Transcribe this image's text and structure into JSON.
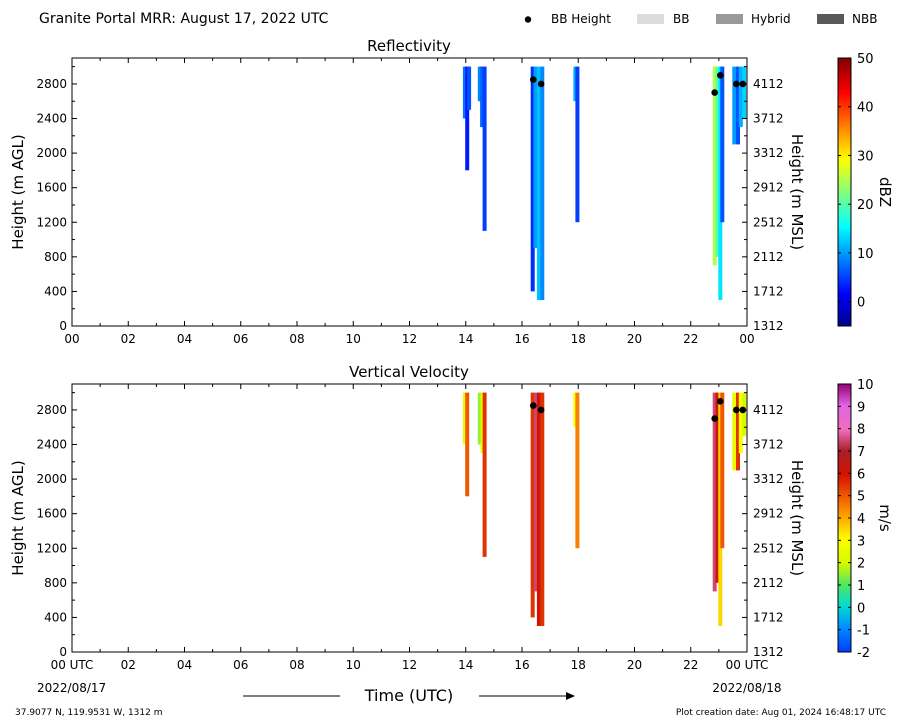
{
  "header": {
    "title": "Granite Portal MRR:  August 17, 2022 UTC",
    "legend": [
      {
        "label": "BB Height",
        "swatch": "dot",
        "color": "#000000"
      },
      {
        "label": "BB",
        "swatch": "box",
        "color": "#dcdcdc"
      },
      {
        "label": "Hybrid",
        "swatch": "box",
        "color": "#999999"
      },
      {
        "label": "NBB",
        "swatch": "box",
        "color": "#595959"
      }
    ]
  },
  "footer": {
    "location": "37.9077 N, 119.9531 W, 1312 m",
    "creation": "Plot creation date: Aug 01, 2024 16:48:17 UTC",
    "xlabel": "Time (UTC)",
    "date_start": "2022/08/17",
    "date_end": "2022/08/18"
  },
  "chart_data": [
    {
      "type": "heatmap",
      "title": "Reflectivity",
      "xlabel": "Time (UTC)",
      "ylabel": "Height (m AGL)",
      "ylabel_right": "Height (m MSL)",
      "xlim": [
        0,
        24
      ],
      "ylim": [
        0,
        3100
      ],
      "xticks": [
        "00",
        "02",
        "04",
        "06",
        "08",
        "10",
        "12",
        "14",
        "16",
        "18",
        "20",
        "22",
        "00"
      ],
      "yticks": [
        "0",
        "400",
        "800",
        "1200",
        "1600",
        "2000",
        "2400",
        "2800"
      ],
      "yticks_right": [
        "1312",
        "1712",
        "2112",
        "2512",
        "2912",
        "3312",
        "3712",
        "4112"
      ],
      "colorbar": {
        "label": "dBZ",
        "min": -5,
        "max": 50,
        "ticks": [
          "0",
          "10",
          "20",
          "30",
          "40",
          "50"
        ],
        "colormap": "jet"
      },
      "columns": [
        {
          "t": 13.97,
          "bottom": 2400,
          "top": 3000,
          "value": 8
        },
        {
          "t": 14.05,
          "bottom": 1800,
          "top": 3000,
          "value": 3
        },
        {
          "t": 14.12,
          "bottom": 2500,
          "top": 3000,
          "value": 6
        },
        {
          "t": 14.5,
          "bottom": 2600,
          "top": 3000,
          "value": 9
        },
        {
          "t": 14.58,
          "bottom": 2300,
          "top": 3000,
          "value": 7
        },
        {
          "t": 14.67,
          "bottom": 1100,
          "top": 3000,
          "value": 5
        },
        {
          "t": 16.38,
          "bottom": 400,
          "top": 3000,
          "value": 4
        },
        {
          "t": 16.48,
          "bottom": 900,
          "top": 3000,
          "value": 10
        },
        {
          "t": 16.6,
          "bottom": 300,
          "top": 3000,
          "value": 12
        },
        {
          "t": 16.72,
          "bottom": 300,
          "top": 3000,
          "value": 9
        },
        {
          "t": 17.9,
          "bottom": 2600,
          "top": 3000,
          "value": 11
        },
        {
          "t": 17.97,
          "bottom": 1200,
          "top": 3000,
          "value": 5
        },
        {
          "t": 22.85,
          "bottom": 700,
          "top": 3000,
          "value": 25
        },
        {
          "t": 22.95,
          "bottom": 800,
          "top": 3000,
          "value": 20
        },
        {
          "t": 23.05,
          "bottom": 300,
          "top": 3000,
          "value": 14
        },
        {
          "t": 23.12,
          "bottom": 1200,
          "top": 3000,
          "value": 6
        },
        {
          "t": 23.55,
          "bottom": 2100,
          "top": 3000,
          "value": 10
        },
        {
          "t": 23.68,
          "bottom": 2100,
          "top": 3000,
          "value": 6
        },
        {
          "t": 23.78,
          "bottom": 2300,
          "top": 3000,
          "value": 11
        },
        {
          "t": 23.9,
          "bottom": 2400,
          "top": 3000,
          "value": 13
        }
      ],
      "bb_height": [
        {
          "t": 16.4,
          "h": 2850
        },
        {
          "t": 16.68,
          "h": 2800
        },
        {
          "t": 22.85,
          "h": 2700
        },
        {
          "t": 23.05,
          "h": 2900
        },
        {
          "t": 23.62,
          "h": 2800
        },
        {
          "t": 23.85,
          "h": 2800
        }
      ]
    },
    {
      "type": "heatmap",
      "title": "Vertical Velocity",
      "xlabel": "Time (UTC)",
      "ylabel": "Height (m AGL)",
      "ylabel_right": "Height (m MSL)",
      "xlim": [
        0,
        24
      ],
      "ylim": [
        0,
        3100
      ],
      "xticks": [
        "00 UTC",
        "02",
        "04",
        "06",
        "08",
        "10",
        "12",
        "14",
        "16",
        "18",
        "20",
        "22",
        "00 UTC"
      ],
      "yticks": [
        "0",
        "400",
        "800",
        "1200",
        "1600",
        "2000",
        "2400",
        "2800"
      ],
      "yticks_right": [
        "1312",
        "1712",
        "2112",
        "2512",
        "2912",
        "3312",
        "3712",
        "4112"
      ],
      "colorbar": {
        "label": "m/s",
        "min": -2,
        "max": 10,
        "ticks": [
          "-2",
          "-1",
          "0",
          "1",
          "2",
          "3",
          "4",
          "5",
          "6",
          "7",
          "8",
          "9",
          "10"
        ],
        "colormap": "velocity"
      },
      "columns": [
        {
          "t": 13.97,
          "bottom": 2400,
          "top": 3000,
          "value": 2.5
        },
        {
          "t": 14.05,
          "bottom": 1800,
          "top": 3000,
          "value": 5
        },
        {
          "t": 14.5,
          "bottom": 2400,
          "top": 3000,
          "value": 1.5
        },
        {
          "t": 14.6,
          "bottom": 2300,
          "top": 3000,
          "value": 2.5
        },
        {
          "t": 14.67,
          "bottom": 1100,
          "top": 3000,
          "value": 5.5
        },
        {
          "t": 16.38,
          "bottom": 400,
          "top": 3000,
          "value": 5.5
        },
        {
          "t": 16.5,
          "bottom": 700,
          "top": 3000,
          "value": 7.5
        },
        {
          "t": 16.6,
          "bottom": 300,
          "top": 3000,
          "value": 6
        },
        {
          "t": 16.72,
          "bottom": 300,
          "top": 3000,
          "value": 5.5
        },
        {
          "t": 17.9,
          "bottom": 2600,
          "top": 3000,
          "value": 3
        },
        {
          "t": 17.97,
          "bottom": 1200,
          "top": 3000,
          "value": 4.5
        },
        {
          "t": 22.85,
          "bottom": 700,
          "top": 3000,
          "value": 7.5
        },
        {
          "t": 22.95,
          "bottom": 800,
          "top": 3000,
          "value": 6
        },
        {
          "t": 23.05,
          "bottom": 300,
          "top": 3000,
          "value": 3.5
        },
        {
          "t": 23.12,
          "bottom": 1200,
          "top": 3000,
          "value": 5
        },
        {
          "t": 23.55,
          "bottom": 2100,
          "top": 3000,
          "value": 2.5
        },
        {
          "t": 23.68,
          "bottom": 2100,
          "top": 3000,
          "value": 5.5
        },
        {
          "t": 23.78,
          "bottom": 2300,
          "top": 3000,
          "value": 3
        },
        {
          "t": 23.9,
          "bottom": 2500,
          "top": 3000,
          "value": 2
        }
      ],
      "bb_height": [
        {
          "t": 16.4,
          "h": 2850
        },
        {
          "t": 16.68,
          "h": 2800
        },
        {
          "t": 22.85,
          "h": 2700
        },
        {
          "t": 23.05,
          "h": 2900
        },
        {
          "t": 23.62,
          "h": 2800
        },
        {
          "t": 23.85,
          "h": 2800
        }
      ]
    }
  ]
}
